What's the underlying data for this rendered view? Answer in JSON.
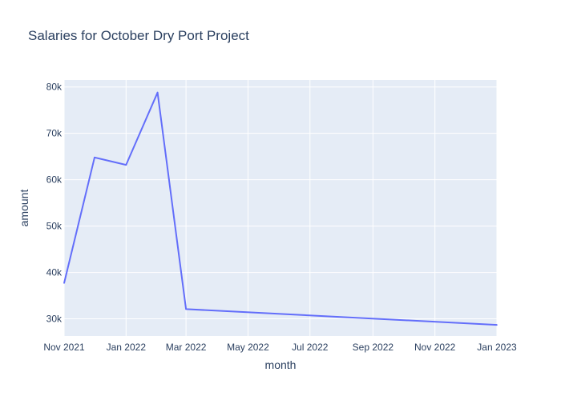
{
  "chart_data": {
    "type": "line",
    "title": "Salaries for October Dry Port Project",
    "xlabel": "month",
    "ylabel": "amount",
    "x_ticks": [
      "Nov 2021",
      "Jan 2022",
      "Mar 2022",
      "May 2022",
      "Jul 2022",
      "Sep 2022",
      "Nov 2022",
      "Jan 2023"
    ],
    "y_ticks": [
      "30k",
      "40k",
      "50k",
      "60k",
      "70k",
      "80k"
    ],
    "x_range": [
      "2021-11-01",
      "2023-01-01"
    ],
    "y_range": [
      26300,
      81500
    ],
    "grid": true,
    "colors": {
      "line": "#636efa",
      "plot_bg": "#e5ecf6",
      "grid": "#ffffff",
      "text": "#2a3f5f"
    },
    "series": [
      {
        "x": [
          "2021-11-01",
          "2021-12-01",
          "2022-01-01",
          "2022-02-01",
          "2022-03-01",
          "2023-01-01"
        ],
        "y": [
          37700,
          64800,
          63200,
          78800,
          32100,
          28700
        ]
      }
    ]
  }
}
